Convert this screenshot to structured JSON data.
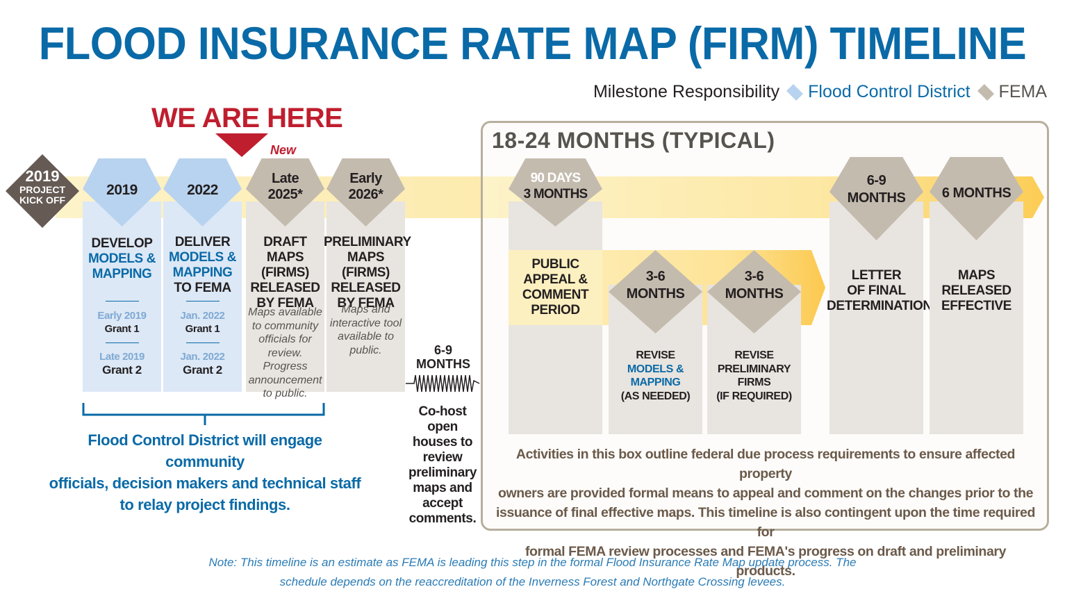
{
  "title": "FLOOD INSURANCE RATE MAP (FIRM) TIMELINE",
  "legend": {
    "label": "Milestone Responsibility",
    "fcd": "Flood Control District",
    "fema": "FEMA",
    "fcd_color": "#b8d3ef",
    "fema_color": "#c4bbaf"
  },
  "we_are_here": "WE ARE HERE",
  "new_tag": "New",
  "kickoff": {
    "year": "2019",
    "label1": "PROJECT",
    "label2": "KICK OFF"
  },
  "milestones": [
    {
      "date": "2019",
      "lines": [
        "DEVELOP"
      ],
      "blue_lines": [
        "MODELS &",
        "MAPPING"
      ],
      "sub1_date": "Early 2019",
      "sub1_grant": "Grant 1",
      "sub2_date": "Late 2019",
      "sub2_grant": "Grant 2"
    },
    {
      "date": "2022",
      "lines": [
        "DELIVER"
      ],
      "blue_lines": [
        "MODELS &",
        "MAPPING"
      ],
      "tail": "TO FEMA",
      "sub1_date": "Jan. 2022",
      "sub1_grant": "Grant 1",
      "sub2_date": "Jan. 2022",
      "sub2_grant": "Grant 2"
    },
    {
      "date1": "Late",
      "date2": "2025*",
      "lines": [
        "DRAFT",
        "MAPS (FIRMS)",
        "RELEASED",
        "BY FEMA"
      ],
      "note": [
        "Maps available",
        "to community",
        "officials for",
        "review. Progress",
        "announcement",
        "to public."
      ]
    },
    {
      "date1": "Early",
      "date2": "2026*",
      "lines": [
        "PRELIMINARY",
        "MAPS (FIRMS)",
        "RELEASED",
        "BY FEMA"
      ],
      "note": [
        "Maps and",
        "interactive tool",
        "available to",
        "public."
      ]
    }
  ],
  "engage": [
    "Flood Control District will engage community",
    "officials, decision makers and technical staff",
    "to relay project findings."
  ],
  "gap": {
    "duration1": "6-9",
    "duration2": "MONTHS",
    "cohost": [
      "Co-host",
      "open",
      "houses to",
      "review",
      "preliminary",
      "maps and",
      "accept",
      "comments."
    ]
  },
  "box": {
    "title": "18-24 MONTHS (TYPICAL)",
    "appeal": {
      "d1": "90 DAYS",
      "d2": "3 MONTHS",
      "lines": [
        "PUBLIC",
        "APPEAL &",
        "COMMENT",
        "PERIOD"
      ]
    },
    "revise1": {
      "d1": "3-6",
      "d2": "MONTHS",
      "l1": "REVISE",
      "blue": [
        "MODELS &",
        "MAPPING"
      ],
      "l2": "(AS NEEDED)"
    },
    "revise2": {
      "d1": "3-6",
      "d2": "MONTHS",
      "lines": [
        "REVISE",
        "PRELIMINARY",
        "FIRMS",
        "(IF REQUIRED)"
      ]
    },
    "lfd": {
      "d1": "6-9",
      "d2": "MONTHS",
      "lines": [
        "LETTER",
        "OF FINAL",
        "DETERMINATION"
      ]
    },
    "effective": {
      "d1": "6 MONTHS",
      "lines": [
        "MAPS",
        "RELEASED",
        "EFFECTIVE"
      ]
    },
    "activities": [
      "Activities in this box outline federal due process requirements to ensure affected property",
      "owners are provided formal means to appeal and comment on the changes prior to the",
      "issuance of final effective maps. This timeline is also contingent upon the time required for",
      "formal FEMA review processes and FEMA's progress on draft and preliminary products."
    ]
  },
  "note": [
    "Note: This timeline is an estimate as FEMA is leading this step in the formal Flood Insurance Rate Map update process. The",
    "schedule depends on the reaccreditation of the Inverness Forest and Northgate Crossing levees."
  ]
}
